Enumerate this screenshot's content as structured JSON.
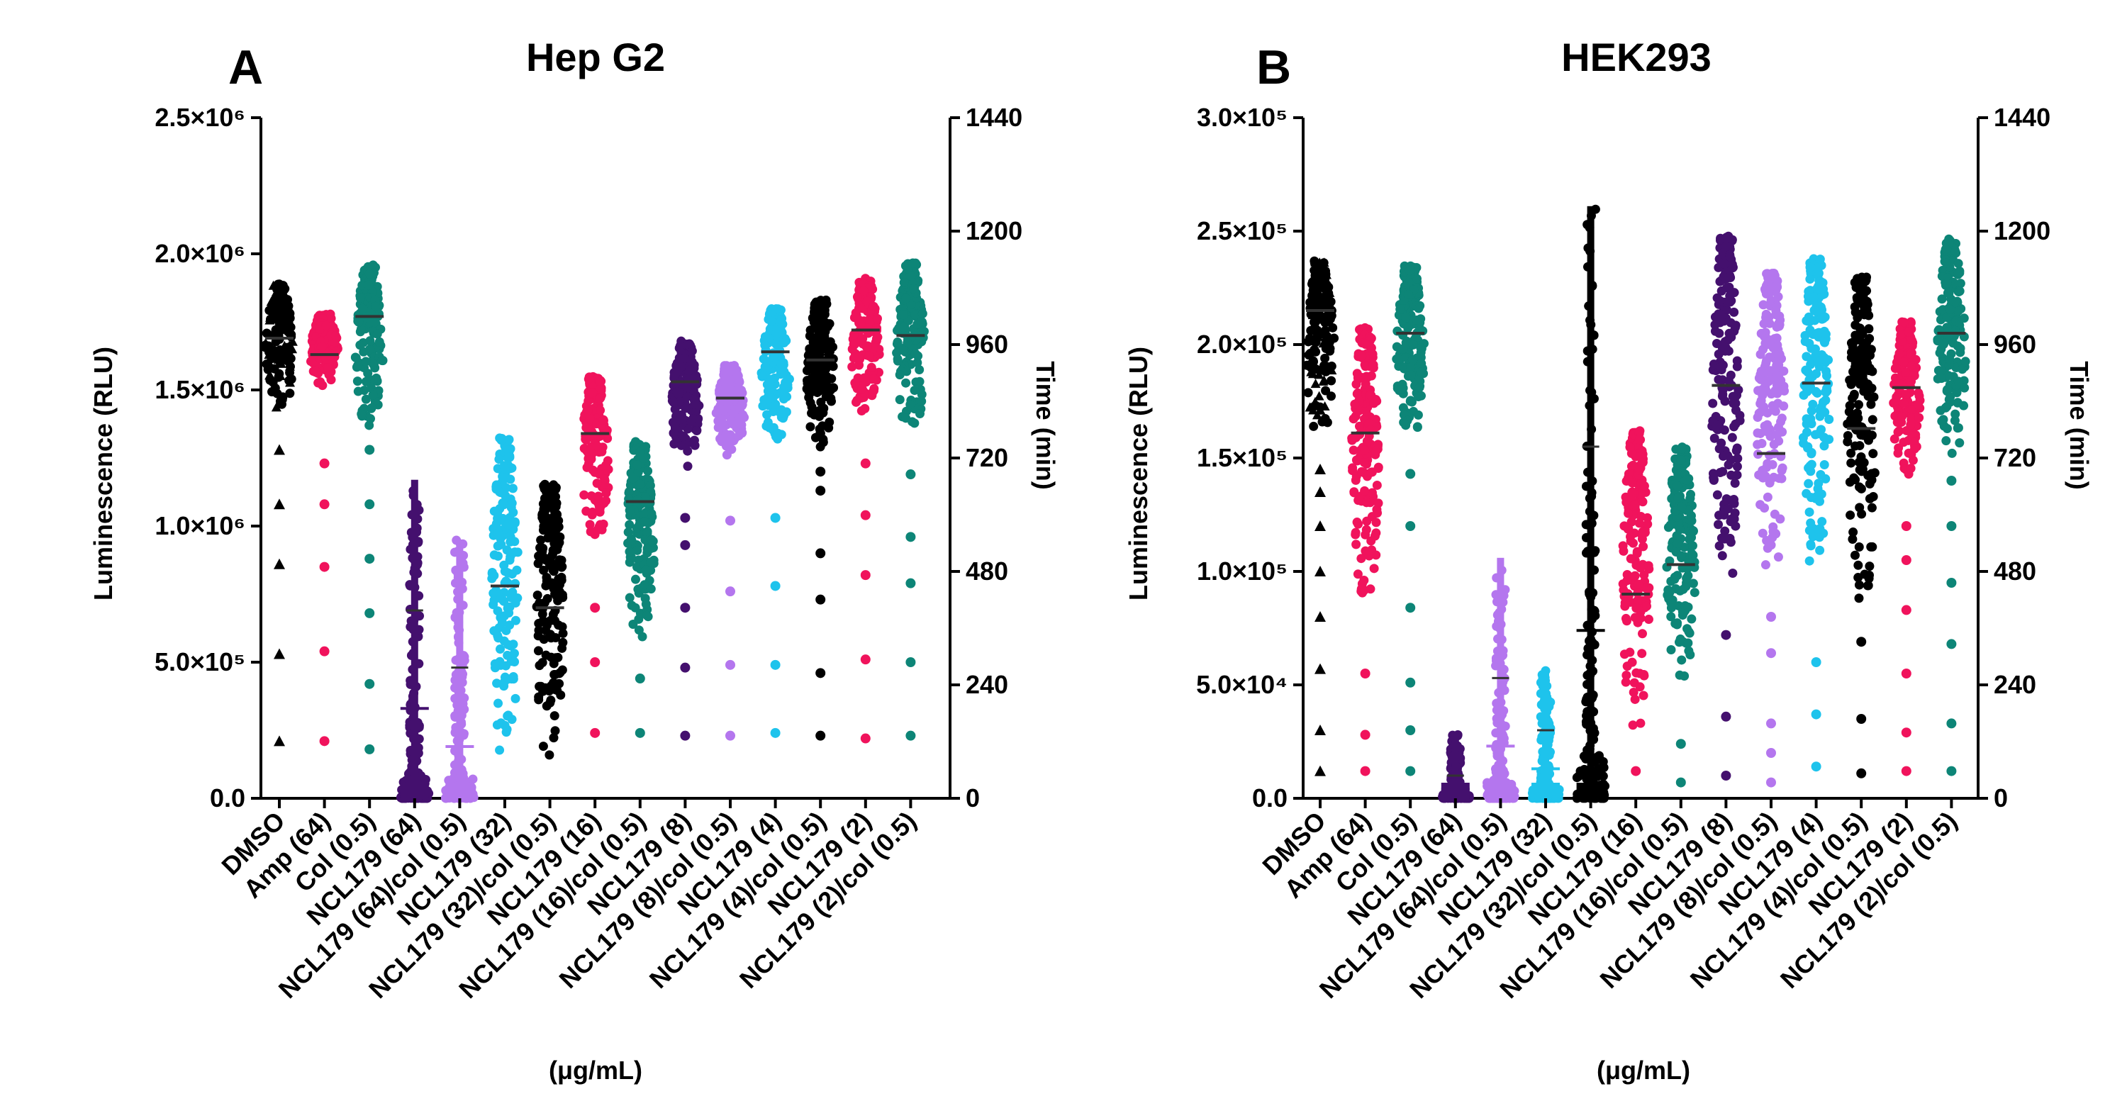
{
  "figure": {
    "categories": [
      "DMSO",
      "Amp (64)",
      "Col (0.5)",
      "NCL179 (64)",
      "NCL179 (64)/col (0.5)",
      "NCL179 (32)",
      "NCL179 (32)/col (0.5)",
      "NCL179 (16)",
      "NCL179 (16)/col (0.5)",
      "NCL179 (8)",
      "NCL179 (8)/col (0.5)",
      "NCL179 (4)",
      "NCL179 (4)/col (0.5)",
      "NCL179 (2)",
      "NCL179 (2)/col (0.5)"
    ],
    "colors": [
      "#000000",
      "#f0135c",
      "#0d8577",
      "#44106e",
      "#b476ee",
      "#1ec3ec",
      "#000000",
      "#f0135c",
      "#0d8577",
      "#44106e",
      "#b476ee",
      "#1ec3ec",
      "#000000",
      "#f0135c",
      "#0d8577"
    ],
    "unit_label": "(μg/mL)"
  },
  "chart_data": [
    {
      "type": "scatter",
      "panel": "A",
      "title": "Hep G2",
      "ylabel": "Luminescence (RLU)",
      "y2label": "Time (min)",
      "ylim": [
        0,
        2500000
      ],
      "y2lim": [
        0,
        1440
      ],
      "yticks": [
        {
          "v": 0,
          "t": "0.0"
        },
        {
          "v": 500000,
          "t": "5.0×10⁵"
        },
        {
          "v": 1000000,
          "t": "1.0×10⁶"
        },
        {
          "v": 1500000,
          "t": "1.5×10⁶"
        },
        {
          "v": 2000000,
          "t": "2.0×10⁶"
        },
        {
          "v": 2500000,
          "t": "2.5×10⁶"
        }
      ],
      "y2ticks": [
        0,
        240,
        480,
        720,
        960,
        1200,
        1440
      ],
      "series": [
        {
          "name": "DMSO",
          "bulk": [
            1400000,
            1890000
          ],
          "mean": 1690000,
          "outliers": [
            210000,
            530000,
            860000,
            1080000,
            1280000
          ],
          "marker": "triangle"
        },
        {
          "name": "Amp (64)",
          "bulk": [
            1500000,
            1780000
          ],
          "mean": 1630000,
          "outliers": [
            210000,
            540000,
            850000,
            1080000,
            1230000
          ]
        },
        {
          "name": "Col (0.5)",
          "bulk": [
            1350000,
            1960000
          ],
          "mean": 1770000,
          "outliers": [
            180000,
            420000,
            680000,
            880000,
            1080000,
            1280000
          ]
        },
        {
          "name": "NCL179 (64)",
          "bulk": [
            0,
            1170000
          ],
          "mean": 330000,
          "sd": 690000,
          "dense_bottom": true
        },
        {
          "name": "NCL179 (64)/col (0.5)",
          "bulk": [
            0,
            950000
          ],
          "mean": 190000,
          "sd": 480000,
          "dense_bottom": true
        },
        {
          "name": "NCL179 (32)",
          "bulk": [
            140000,
            1330000
          ],
          "mean": 780000
        },
        {
          "name": "NCL179 (32)/col (0.5)",
          "bulk": [
            150000,
            1160000
          ],
          "mean": 700000
        },
        {
          "name": "NCL179 (16)",
          "bulk": [
            900000,
            1550000
          ],
          "mean": 1340000,
          "outliers": [
            240000,
            500000,
            700000
          ]
        },
        {
          "name": "NCL179 (16)/col (0.5)",
          "bulk": [
            570000,
            1310000
          ],
          "mean": 1090000,
          "outliers": [
            240000,
            440000
          ]
        },
        {
          "name": "NCL179 (8)",
          "bulk": [
            1200000,
            1680000
          ],
          "mean": 1530000,
          "outliers": [
            230000,
            480000,
            700000,
            930000,
            1030000
          ]
        },
        {
          "name": "NCL179 (8)/col (0.5)",
          "bulk": [
            1250000,
            1590000
          ],
          "mean": 1470000,
          "outliers": [
            230000,
            490000,
            760000,
            1020000
          ]
        },
        {
          "name": "NCL179 (4)",
          "bulk": [
            1300000,
            1800000
          ],
          "mean": 1640000,
          "outliers": [
            240000,
            490000,
            780000,
            1030000
          ]
        },
        {
          "name": "NCL179 (4)/col (0.5)",
          "bulk": [
            1280000,
            1830000
          ],
          "mean": 1610000,
          "outliers": [
            230000,
            460000,
            730000,
            900000,
            1130000,
            1200000
          ]
        },
        {
          "name": "NCL179 (2)",
          "bulk": [
            1390000,
            1910000
          ],
          "mean": 1720000,
          "outliers": [
            220000,
            510000,
            820000,
            1040000,
            1230000
          ]
        },
        {
          "name": "NCL179 (2)/col (0.5)",
          "bulk": [
            1330000,
            1970000
          ],
          "mean": 1700000,
          "outliers": [
            230000,
            500000,
            790000,
            960000,
            1190000
          ]
        }
      ]
    },
    {
      "type": "scatter",
      "panel": "B",
      "title": "HEK293",
      "ylabel": "Luminescence (RLU)",
      "y2label": "Time (min)",
      "ylim": [
        0,
        300000
      ],
      "y2lim": [
        0,
        1440
      ],
      "yticks": [
        {
          "v": 0,
          "t": "0.0"
        },
        {
          "v": 50000,
          "t": "5.0×10⁴"
        },
        {
          "v": 100000,
          "t": "1.0×10⁵"
        },
        {
          "v": 150000,
          "t": "1.5×10⁵"
        },
        {
          "v": 200000,
          "t": "2.0×10⁵"
        },
        {
          "v": 250000,
          "t": "2.5×10⁵"
        },
        {
          "v": 300000,
          "t": "3.0×10⁵"
        }
      ],
      "y2ticks": [
        0,
        240,
        480,
        720,
        960,
        1200,
        1440
      ],
      "series": [
        {
          "name": "DMSO",
          "bulk": [
            160000,
            237000
          ],
          "mean": 215000,
          "outliers": [
            12000,
            30000,
            57000,
            80000,
            100000,
            120000,
            135000,
            145000
          ],
          "marker": "triangle"
        },
        {
          "name": "Amp (64)",
          "bulk": [
            85000,
            208000
          ],
          "mean": 161000,
          "outliers": [
            12000,
            28000,
            55000
          ]
        },
        {
          "name": "Col (0.5)",
          "bulk": [
            158000,
            235000
          ],
          "mean": 205000,
          "outliers": [
            12000,
            30000,
            51000,
            84000,
            120000,
            143000
          ]
        },
        {
          "name": "NCL179 (64)",
          "bulk": [
            0,
            29000
          ],
          "mean": 4000,
          "sd": 10000,
          "dense_bottom": true
        },
        {
          "name": "NCL179 (64)/col (0.5)",
          "bulk": [
            0,
            106000
          ],
          "mean": 23000,
          "sd": 53000,
          "dense_bottom": true
        },
        {
          "name": "NCL179 (32)",
          "bulk": [
            0,
            57000
          ],
          "mean": 13000,
          "sd": 30000,
          "dense_bottom": true
        },
        {
          "name": "NCL179 (32)/col (0.5)",
          "bulk": [
            0,
            261000
          ],
          "mean": 74000,
          "sd": 155000,
          "dense_bottom": true
        },
        {
          "name": "NCL179 (16)",
          "bulk": [
            28000,
            162000
          ],
          "mean": 90000,
          "outliers": [
            12000
          ]
        },
        {
          "name": "NCL179 (16)/col (0.5)",
          "bulk": [
            50000,
            155000
          ],
          "mean": 103000,
          "outliers": [
            7000,
            24000
          ]
        },
        {
          "name": "NCL179 (8)",
          "bulk": [
            95000,
            248000
          ],
          "mean": 182000,
          "outliers": [
            10000,
            36000,
            72000
          ]
        },
        {
          "name": "NCL179 (8)/col (0.5)",
          "bulk": [
            100000,
            232000
          ],
          "mean": 152000,
          "outliers": [
            7000,
            20000,
            33000,
            64000,
            80000
          ]
        },
        {
          "name": "NCL179 (4)",
          "bulk": [
            101000,
            238000
          ],
          "mean": 183000,
          "outliers": [
            14000,
            37000,
            60000
          ]
        },
        {
          "name": "NCL179 (4)/col (0.5)",
          "bulk": [
            79000,
            231000
          ],
          "mean": 163000,
          "outliers": [
            11000,
            35000,
            69000
          ]
        },
        {
          "name": "NCL179 (2)",
          "bulk": [
            140000,
            210000
          ],
          "mean": 181000,
          "outliers": [
            12000,
            29000,
            55000,
            83000,
            105000,
            120000
          ]
        },
        {
          "name": "NCL179 (2)/col (0.5)",
          "bulk": [
            145000,
            247000
          ],
          "mean": 205000,
          "outliers": [
            12000,
            33000,
            68000,
            95000,
            120000,
            140000
          ]
        }
      ]
    }
  ]
}
